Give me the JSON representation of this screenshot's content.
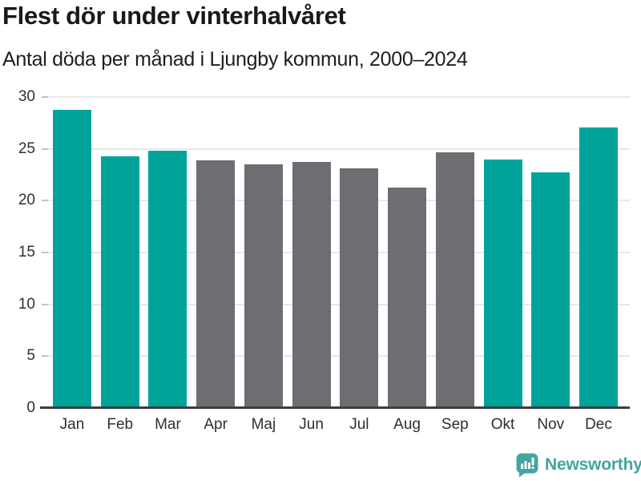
{
  "chart_data": {
    "type": "bar",
    "title": "Flest dör under vinterhalvåret",
    "subtitle": "Antal döda per månad i Ljungby kommun, 2000–2024",
    "categories": [
      "Jan",
      "Feb",
      "Mar",
      "Apr",
      "Maj",
      "Jun",
      "Jul",
      "Aug",
      "Sep",
      "Okt",
      "Nov",
      "Dec"
    ],
    "values": [
      28.8,
      24.3,
      24.8,
      23.9,
      23.5,
      23.7,
      23.1,
      21.3,
      24.7,
      24.0,
      22.7,
      27.1
    ],
    "highlighted": [
      true,
      true,
      true,
      false,
      false,
      false,
      false,
      false,
      false,
      true,
      true,
      true
    ],
    "xlabel": "",
    "ylabel": "",
    "ylim": [
      0,
      30
    ],
    "yticks": [
      0,
      5,
      10,
      15,
      20,
      25,
      30
    ],
    "grid": true,
    "legend": "none",
    "colors": {
      "highlight": "#00a49a",
      "muted": "#6d6d72",
      "gridline": "#e8e8e8",
      "tick": "#c4c4c4",
      "axis": "#3d3d3d",
      "label_text": "#2f2f2f",
      "title_text": "#191919"
    }
  },
  "footer": {
    "brand": "Newsworthy",
    "logo_icon": "speech-bubble-bar-chart-icon",
    "brand_color": "#43a5a0"
  }
}
